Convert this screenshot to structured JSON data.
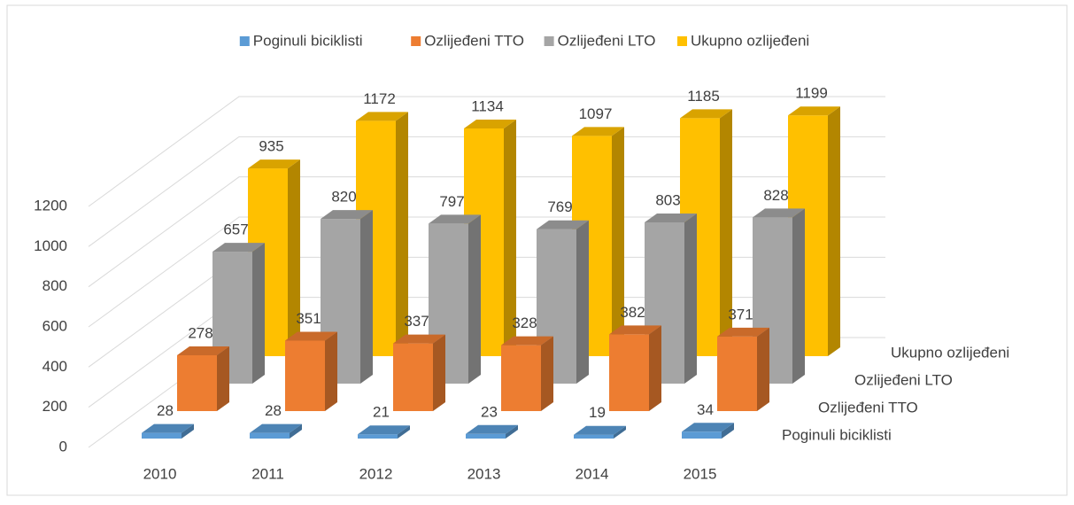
{
  "chart_data": {
    "type": "bar3d",
    "categories": [
      "2010",
      "2011",
      "2012",
      "2013",
      "2014",
      "2015"
    ],
    "series": [
      {
        "name": "Poginuli biciklisti",
        "color": "#5b9bd5",
        "values": [
          28,
          28,
          21,
          23,
          19,
          34
        ]
      },
      {
        "name": "Ozlijeđeni TTO",
        "color": "#ed7d31",
        "values": [
          278,
          351,
          337,
          328,
          382,
          371
        ]
      },
      {
        "name": "Ozlijeđeni LTO",
        "color": "#a5a5a5",
        "values": [
          657,
          820,
          797,
          769,
          803,
          828
        ]
      },
      {
        "name": "Ukupno ozlijeđeni",
        "color": "#ffc000",
        "values": [
          935,
          1172,
          1134,
          1097,
          1185,
          1199
        ]
      }
    ],
    "ylim": [
      0,
      1200
    ],
    "yticks": [
      0,
      200,
      400,
      600,
      800,
      1000,
      1200
    ],
    "grid": true,
    "legend": "top"
  }
}
